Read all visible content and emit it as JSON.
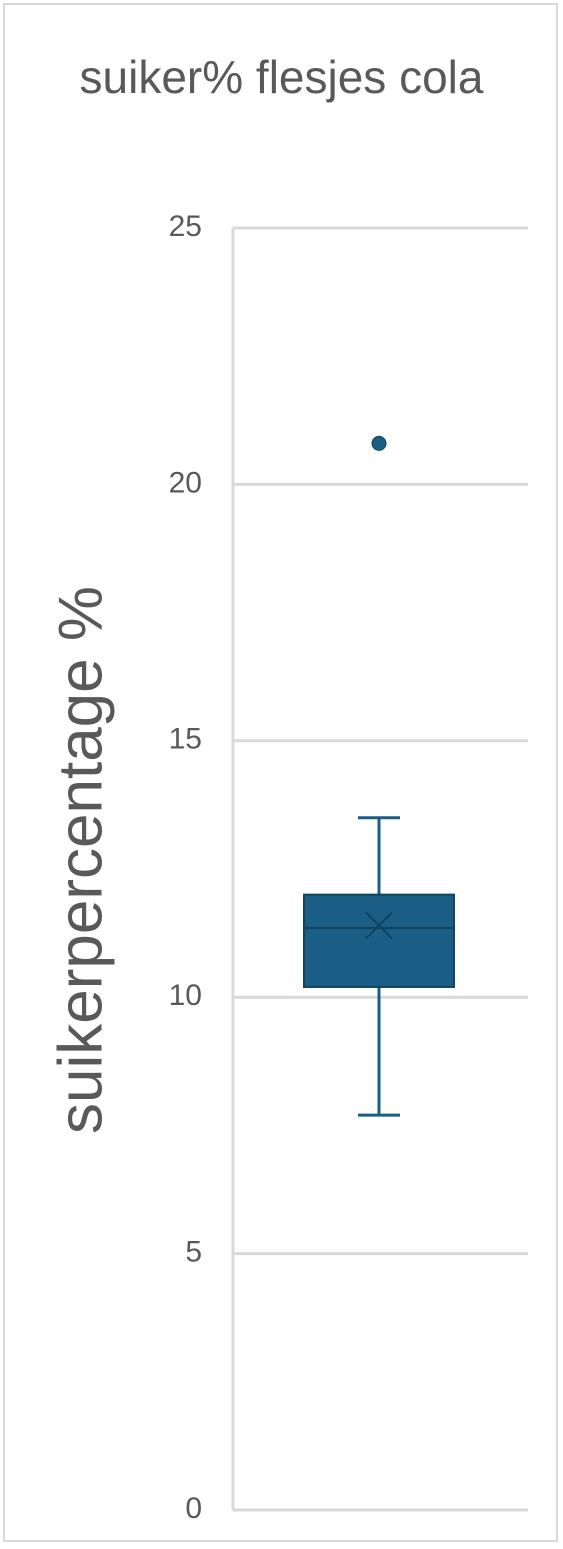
{
  "chart_data": {
    "type": "box",
    "title": "suiker% flesjes cola",
    "ylabel": "suikerpercentage %",
    "min": 7.7,
    "q1": 10.2,
    "median": 11.35,
    "mean": 11.4,
    "q3": 12.0,
    "max": 13.5,
    "outliers": [
      20.8
    ],
    "color": "#1a5e85",
    "ylim": [
      0,
      25
    ],
    "yticks": [
      0,
      5,
      10,
      15,
      20,
      25
    ],
    "grid": true
  }
}
